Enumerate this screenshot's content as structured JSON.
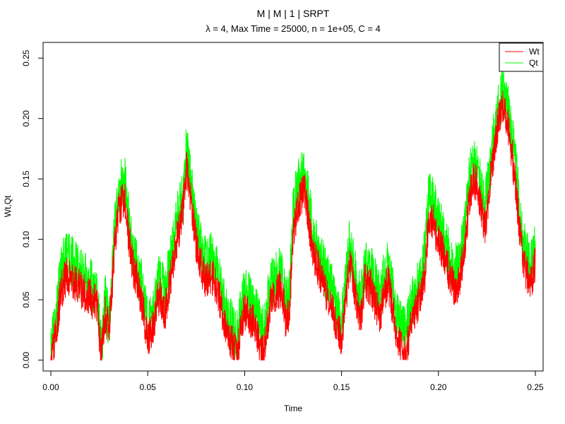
{
  "chart_data": {
    "type": "line",
    "title": "M | M | 1 | SRPT",
    "subtitle": "λ = 4, Max Time = 25000, n = 1e+05, C = 4",
    "xlabel": "Time",
    "ylabel": "Wt,Qt",
    "xlim": [
      -0.004,
      0.254
    ],
    "ylim": [
      -0.009,
      0.263
    ],
    "x_ticks": [
      {
        "value": 0.0,
        "label": "0.00"
      },
      {
        "value": 0.05,
        "label": "0.05"
      },
      {
        "value": 0.1,
        "label": "0.10"
      },
      {
        "value": 0.15,
        "label": "0.15"
      },
      {
        "value": 0.2,
        "label": "0.20"
      },
      {
        "value": 0.25,
        "label": "0.25"
      }
    ],
    "y_ticks": [
      {
        "value": 0.0,
        "label": "0.00"
      },
      {
        "value": 0.05,
        "label": "0.05"
      },
      {
        "value": 0.1,
        "label": "0.10"
      },
      {
        "value": 0.15,
        "label": "0.15"
      },
      {
        "value": 0.2,
        "label": "0.20"
      },
      {
        "value": 0.25,
        "label": "0.25"
      }
    ],
    "legend": {
      "position": "top-right"
    },
    "series": [
      {
        "name": "Qt",
        "color": "#00ff00",
        "x": [
          0.0,
          0.003,
          0.005,
          0.008,
          0.012,
          0.016,
          0.02,
          0.024,
          0.026,
          0.028,
          0.03,
          0.033,
          0.035,
          0.038,
          0.04,
          0.042,
          0.044,
          0.047,
          0.05,
          0.053,
          0.056,
          0.059,
          0.062,
          0.065,
          0.068,
          0.07,
          0.072,
          0.075,
          0.078,
          0.08,
          0.083,
          0.086,
          0.09,
          0.093,
          0.096,
          0.098,
          0.1,
          0.103,
          0.106,
          0.108,
          0.11,
          0.113,
          0.116,
          0.119,
          0.121,
          0.123,
          0.125,
          0.127,
          0.129,
          0.131,
          0.133,
          0.136,
          0.139,
          0.142,
          0.145,
          0.148,
          0.15,
          0.152,
          0.154,
          0.156,
          0.158,
          0.16,
          0.162,
          0.165,
          0.168,
          0.17,
          0.172,
          0.174,
          0.176,
          0.178,
          0.18,
          0.183,
          0.186,
          0.189,
          0.191,
          0.193,
          0.195,
          0.197,
          0.199,
          0.201,
          0.203,
          0.205,
          0.208,
          0.211,
          0.214,
          0.216,
          0.218,
          0.22,
          0.222,
          0.224,
          0.226,
          0.228,
          0.23,
          0.232,
          0.234,
          0.236,
          0.238,
          0.24,
          0.242,
          0.244,
          0.246,
          0.248,
          0.25
        ],
        "y": [
          0.005,
          0.04,
          0.075,
          0.085,
          0.08,
          0.07,
          0.065,
          0.055,
          0.005,
          0.05,
          0.03,
          0.11,
          0.14,
          0.15,
          0.12,
          0.09,
          0.08,
          0.06,
          0.03,
          0.04,
          0.07,
          0.055,
          0.085,
          0.115,
          0.135,
          0.175,
          0.15,
          0.11,
          0.09,
          0.08,
          0.085,
          0.075,
          0.04,
          0.03,
          0.02,
          0.04,
          0.055,
          0.05,
          0.04,
          0.03,
          0.025,
          0.06,
          0.07,
          0.075,
          0.05,
          0.055,
          0.12,
          0.145,
          0.15,
          0.155,
          0.13,
          0.1,
          0.085,
          0.07,
          0.06,
          0.04,
          0.03,
          0.06,
          0.095,
          0.08,
          0.06,
          0.05,
          0.08,
          0.075,
          0.06,
          0.05,
          0.07,
          0.08,
          0.06,
          0.04,
          0.03,
          0.025,
          0.045,
          0.06,
          0.07,
          0.09,
          0.135,
          0.13,
          0.12,
          0.11,
          0.1,
          0.09,
          0.075,
          0.08,
          0.115,
          0.15,
          0.165,
          0.16,
          0.14,
          0.125,
          0.15,
          0.18,
          0.2,
          0.215,
          0.22,
          0.205,
          0.185,
          0.16,
          0.12,
          0.095,
          0.085,
          0.08,
          0.095
        ]
      },
      {
        "name": "Wt",
        "color": "#ff0000",
        "x": [
          0.0,
          0.003,
          0.005,
          0.008,
          0.012,
          0.016,
          0.02,
          0.024,
          0.026,
          0.028,
          0.03,
          0.033,
          0.035,
          0.038,
          0.04,
          0.042,
          0.044,
          0.047,
          0.05,
          0.053,
          0.056,
          0.059,
          0.062,
          0.065,
          0.068,
          0.07,
          0.072,
          0.075,
          0.078,
          0.08,
          0.083,
          0.086,
          0.09,
          0.093,
          0.096,
          0.098,
          0.1,
          0.103,
          0.106,
          0.108,
          0.11,
          0.113,
          0.116,
          0.119,
          0.121,
          0.123,
          0.125,
          0.127,
          0.129,
          0.131,
          0.133,
          0.136,
          0.139,
          0.142,
          0.145,
          0.148,
          0.15,
          0.152,
          0.154,
          0.156,
          0.158,
          0.16,
          0.162,
          0.165,
          0.168,
          0.17,
          0.172,
          0.174,
          0.176,
          0.178,
          0.18,
          0.183,
          0.186,
          0.189,
          0.191,
          0.193,
          0.195,
          0.197,
          0.199,
          0.201,
          0.203,
          0.205,
          0.208,
          0.211,
          0.214,
          0.216,
          0.218,
          0.22,
          0.222,
          0.224,
          0.226,
          0.228,
          0.23,
          0.232,
          0.234,
          0.236,
          0.238,
          0.24,
          0.242,
          0.244,
          0.246,
          0.248,
          0.25
        ],
        "y": [
          0.0,
          0.025,
          0.055,
          0.07,
          0.065,
          0.058,
          0.052,
          0.045,
          0.0,
          0.04,
          0.022,
          0.095,
          0.125,
          0.135,
          0.105,
          0.08,
          0.068,
          0.048,
          0.015,
          0.03,
          0.055,
          0.04,
          0.07,
          0.1,
          0.12,
          0.16,
          0.135,
          0.095,
          0.075,
          0.065,
          0.07,
          0.06,
          0.025,
          0.015,
          0.005,
          0.025,
          0.04,
          0.035,
          0.025,
          0.01,
          0.005,
          0.045,
          0.055,
          0.06,
          0.035,
          0.04,
          0.1,
          0.125,
          0.135,
          0.14,
          0.115,
          0.085,
          0.07,
          0.055,
          0.045,
          0.025,
          0.015,
          0.045,
          0.08,
          0.065,
          0.045,
          0.035,
          0.065,
          0.06,
          0.045,
          0.035,
          0.055,
          0.065,
          0.045,
          0.025,
          0.015,
          0.005,
          0.03,
          0.045,
          0.055,
          0.07,
          0.12,
          0.115,
          0.105,
          0.095,
          0.085,
          0.075,
          0.06,
          0.065,
          0.1,
          0.135,
          0.15,
          0.145,
          0.125,
          0.11,
          0.135,
          0.165,
          0.19,
          0.205,
          0.21,
          0.195,
          0.17,
          0.14,
          0.105,
          0.08,
          0.07,
          0.065,
          0.08
        ]
      }
    ],
    "legend_entries": [
      {
        "label": "Wt",
        "color": "#ff0000"
      },
      {
        "label": "Qt",
        "color": "#00ff00"
      }
    ]
  }
}
